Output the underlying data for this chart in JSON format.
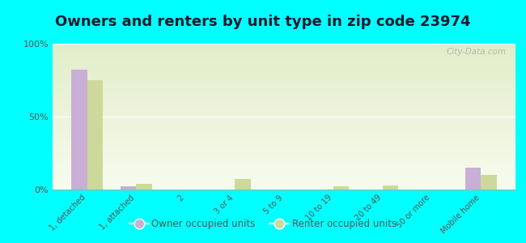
{
  "title": "Owners and renters by unit type in zip code 23974",
  "categories": [
    "1, detached",
    "1, attached",
    "2",
    "3 or 4",
    "5 to 9",
    "10 to 19",
    "20 to 49",
    "50 or more",
    "Mobile home"
  ],
  "owner_values": [
    82,
    2,
    0,
    0,
    0,
    0,
    0,
    0,
    15
  ],
  "renter_values": [
    75,
    4,
    0,
    7,
    0,
    2,
    3,
    0,
    10
  ],
  "owner_color": "#c9aed6",
  "renter_color": "#cdd99a",
  "background_color": "#00ffff",
  "plot_bg_color": "#edf2d6",
  "ylim": [
    0,
    100
  ],
  "yticks": [
    0,
    50,
    100
  ],
  "ytick_labels": [
    "0%",
    "50%",
    "100%"
  ],
  "legend_owner": "Owner occupied units",
  "legend_renter": "Renter occupied units",
  "title_fontsize": 13,
  "watermark": "City-Data.com"
}
